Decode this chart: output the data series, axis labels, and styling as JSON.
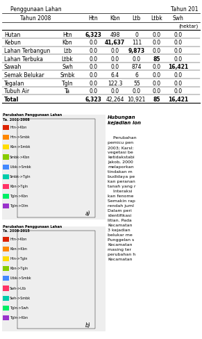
{
  "title_penggunaan": "Penggunaan Lahan",
  "title_tahun2008": "Tahun 2008",
  "title_tahun201": "Tahun 201",
  "col_headers": [
    "Htn",
    "Kbn",
    "Ltb",
    "Ltbk",
    "Swh"
  ],
  "unit": "(hektar)",
  "rows": [
    {
      "name": "Hutan",
      "abbr": "Htn",
      "vals": [
        "6,323",
        "498",
        "0",
        "0.0",
        "0.0"
      ]
    },
    {
      "name": "Kebun",
      "abbr": "Kbn",
      "vals": [
        "0.0",
        "41,637",
        "111",
        "0.0",
        "0.0"
      ]
    },
    {
      "name": "Lahan Terbangun",
      "abbr": "Ltb",
      "vals": [
        "0.0",
        "0.0",
        "9,873",
        "0.0",
        "0.0"
      ]
    },
    {
      "name": "Lahan Terbuka",
      "abbr": "Ltbk",
      "vals": [
        "0.0",
        "0.0",
        "0.0",
        "85",
        "0.0"
      ]
    },
    {
      "name": "Sawah",
      "abbr": "Swh",
      "vals": [
        "0.0",
        "0.0",
        "874",
        "0.0",
        "16,421"
      ]
    },
    {
      "name": "Semak Belukar",
      "abbr": "Smbk",
      "vals": [
        "0.0",
        "6.4",
        "6",
        "0.0",
        "0.0"
      ]
    },
    {
      "name": "Tegalan",
      "abbr": "Tgln",
      "vals": [
        "0.0",
        "122.3",
        "55",
        "0.0",
        "0.0"
      ]
    },
    {
      "name": "Tubuh Air",
      "abbr": "Ta",
      "vals": [
        "0.0",
        "0.0",
        "0.0",
        "0.0",
        "0.0"
      ]
    },
    {
      "name": "Total",
      "abbr": "",
      "vals": [
        "6,323",
        "42,264",
        "10,921",
        "85",
        "16,421"
      ]
    }
  ],
  "bold_vals": [
    "6,323",
    "41,637",
    "9,873",
    "85",
    "16,421"
  ],
  "map_label_a": "a)",
  "map_label_b": "b)",
  "legend_title_a": "Perubahan Penggunaan Lahan\nTa. 2001-2008",
  "legend_title_b": "Perubahan Penggunaan Lahan\nTa. 2008-2015",
  "legend_a_items": [
    [
      "Htn->Kbn",
      "#dd2200"
    ],
    [
      "Htn->Smbk",
      "#ff8800"
    ],
    [
      "Kbn->Smbk",
      "#ffdd00"
    ],
    [
      "Smbk->Kbn",
      "#88cc00"
    ],
    [
      "Ltbk->Smbk",
      "#4488ff"
    ],
    [
      "Smbk->Tgln",
      "#00ccaa"
    ],
    [
      "Kbn->Tgln",
      "#ff3366"
    ],
    [
      "Tgln->Kbn",
      "#00ee66"
    ],
    [
      "Tgln->Olm",
      "#9933cc"
    ]
  ],
  "legend_b_items": [
    [
      "Htn->Kbn",
      "#dd2200"
    ],
    [
      "Kbn->Kbn",
      "#ff8800"
    ],
    [
      "Htn->Tgln",
      "#ffdd00"
    ],
    [
      "Kbn->Tgln",
      "#88cc00"
    ],
    [
      "Ltbk->Smbk",
      "#4488ff"
    ],
    [
      "Swh->Ltb",
      "#ff3366"
    ],
    [
      "Swh->Smbk",
      "#00ccaa"
    ],
    [
      "Tgln->Swh",
      "#00ee66"
    ],
    [
      "Tgln->Kbn",
      "#9933cc"
    ]
  ],
  "right_text_title": "Hubungan\nkejadian lon",
  "right_text_body": "    Perubahan\npemicu pen\n2003; Karsl:\nvegetasi be\nketidakstabi\nJakob, 2000\nmelaporkan\ntindakan m\nbudidaya pe\nkan peranan\ntanah yang r\n    Interaksi\nkan fenome\nSemakin rap\nrendah juml\nDalam peri\nidentifikasi\nlitian. Pada\nKecamatan\n3 kejadian\nbelukar me\nPunggelan s\nKecamatan\nmasing ter\nperubahan h\nKecamatan",
  "bg_color": "#ffffff",
  "table_line_color": "#000000",
  "text_color": "#000000",
  "font_size_table": 5.5,
  "font_size_map": 4.5
}
